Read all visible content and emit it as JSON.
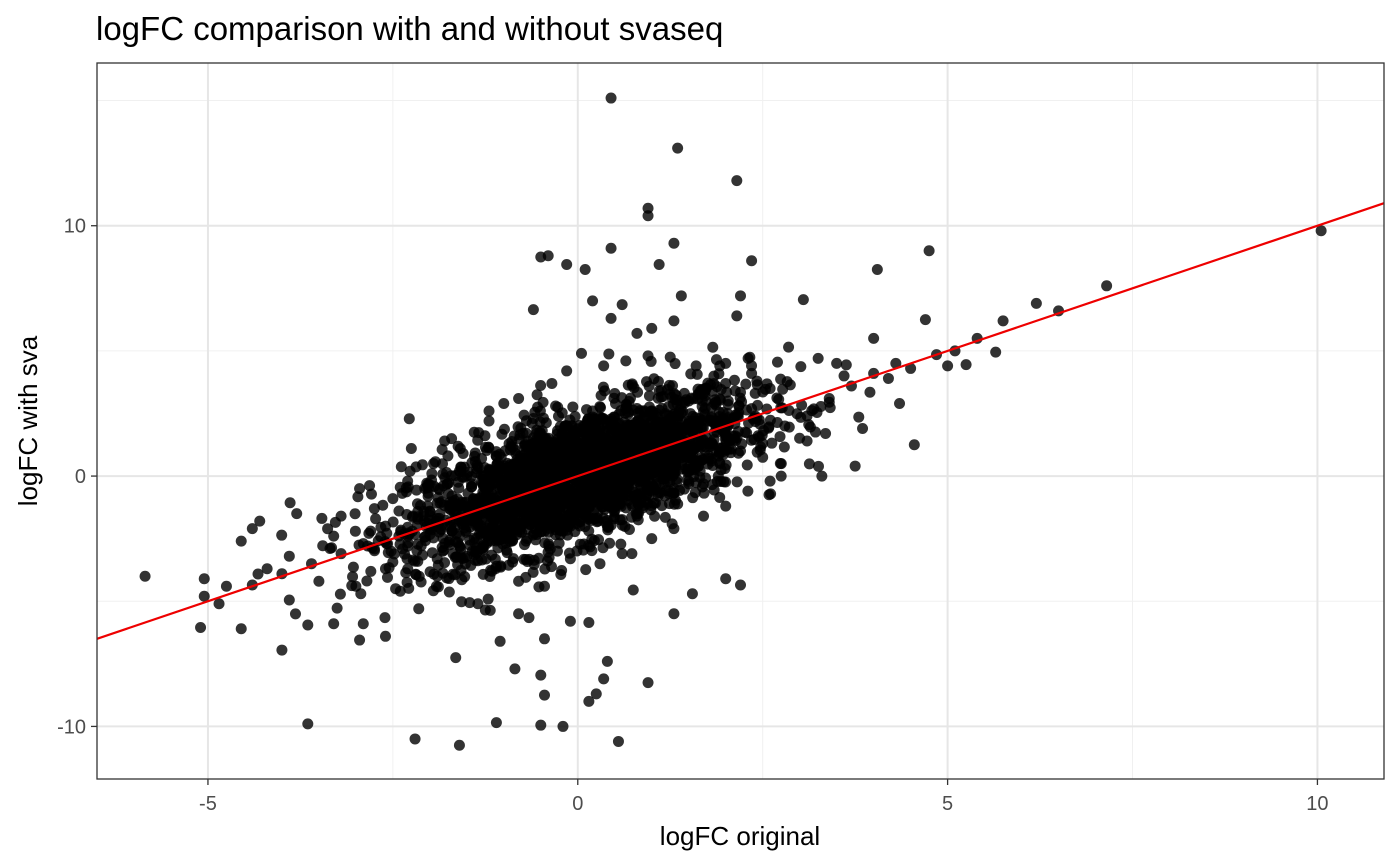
{
  "chart_data": {
    "type": "scatter",
    "title": "logFC comparison with and without svaseq",
    "xlabel": "logFC original",
    "ylabel": "logFC with sva",
    "xlim": [
      -6.5,
      10.9
    ],
    "ylim": [
      -12.1,
      16.5
    ],
    "x_ticks": [
      -5,
      0,
      5,
      10
    ],
    "y_ticks": [
      -10,
      0,
      10
    ],
    "x_tick_labels": [
      "-5",
      "0",
      "5",
      "10"
    ],
    "y_tick_labels": [
      "-10",
      "0",
      "10"
    ],
    "grid": true,
    "legend": "none",
    "point_color": "#000000",
    "point_opacity": 0.8,
    "line_color": "#ee0000",
    "fit_line": {
      "slope": 1.0,
      "intercept": 0.0
    },
    "points": [
      [
        0.45,
        15.1
      ],
      [
        1.35,
        13.1
      ],
      [
        2.15,
        11.8
      ],
      [
        0.95,
        10.7
      ],
      [
        0.95,
        10.4
      ],
      [
        10.05,
        9.8
      ],
      [
        1.3,
        9.3
      ],
      [
        0.45,
        9.1
      ],
      [
        4.75,
        9.0
      ],
      [
        -0.4,
        8.8
      ],
      [
        -0.5,
        8.75
      ],
      [
        -0.15,
        8.45
      ],
      [
        0.1,
        8.25
      ],
      [
        1.1,
        8.45
      ],
      [
        2.35,
        8.6
      ],
      [
        4.05,
        8.25
      ],
      [
        7.15,
        7.6
      ],
      [
        2.2,
        7.2
      ],
      [
        1.4,
        7.2
      ],
      [
        3.05,
        7.05
      ],
      [
        0.2,
        7.0
      ],
      [
        0.6,
        6.85
      ],
      [
        -0.6,
        6.65
      ],
      [
        6.2,
        6.9
      ],
      [
        6.5,
        6.6
      ],
      [
        5.75,
        6.2
      ],
      [
        0.45,
        6.3
      ],
      [
        1.3,
        6.2
      ],
      [
        4.7,
        6.25
      ],
      [
        2.15,
        6.4
      ],
      [
        1.0,
        5.9
      ],
      [
        0.8,
        5.7
      ],
      [
        4.0,
        5.5
      ],
      [
        5.4,
        5.5
      ],
      [
        5.1,
        5.0
      ],
      [
        4.85,
        4.85
      ],
      [
        5.0,
        4.4
      ],
      [
        5.25,
        4.45
      ],
      [
        5.65,
        4.95
      ],
      [
        4.5,
        4.3
      ],
      [
        3.6,
        4.0
      ],
      [
        4.2,
        3.9
      ],
      [
        3.95,
        3.35
      ],
      [
        4.35,
        2.9
      ],
      [
        3.4,
        2.95
      ],
      [
        3.85,
        1.9
      ],
      [
        3.1,
        1.4
      ],
      [
        2.75,
        0.0
      ],
      [
        3.3,
        0.0
      ],
      [
        3.75,
        0.4
      ],
      [
        3.35,
        1.7
      ],
      [
        4.55,
        1.25
      ],
      [
        2.5,
        0.75
      ],
      [
        1.9,
        0.8
      ],
      [
        -5.85,
        -4.0
      ],
      [
        -5.05,
        -4.8
      ],
      [
        -5.05,
        -4.1
      ],
      [
        -4.85,
        -5.1
      ],
      [
        -4.75,
        -4.4
      ],
      [
        -4.55,
        -2.6
      ],
      [
        -4.55,
        -6.1
      ],
      [
        -5.1,
        -6.05
      ],
      [
        -4.0,
        -6.95
      ],
      [
        -3.65,
        -5.95
      ],
      [
        -3.65,
        -9.9
      ],
      [
        -3.3,
        -5.9
      ],
      [
        -2.9,
        -5.9
      ],
      [
        -2.95,
        -6.55
      ],
      [
        -2.6,
        -6.4
      ],
      [
        -2.2,
        -10.5
      ],
      [
        -1.65,
        -7.25
      ],
      [
        -1.6,
        -10.75
      ],
      [
        -1.1,
        -9.85
      ],
      [
        -1.05,
        -6.6
      ],
      [
        -0.85,
        -7.7
      ],
      [
        -0.5,
        -7.95
      ],
      [
        -0.45,
        -8.75
      ],
      [
        -0.5,
        -9.95
      ],
      [
        -0.2,
        -10.0
      ],
      [
        0.15,
        -9.0
      ],
      [
        0.25,
        -8.7
      ],
      [
        0.35,
        -8.1
      ],
      [
        0.55,
        -10.6
      ],
      [
        0.4,
        -7.4
      ],
      [
        0.95,
        -8.25
      ],
      [
        1.3,
        -5.5
      ],
      [
        -0.8,
        -5.5
      ],
      [
        -1.35,
        -5.1
      ],
      [
        2.0,
        -4.1
      ],
      [
        2.2,
        -4.35
      ],
      [
        1.55,
        -4.7
      ],
      [
        0.75,
        -4.55
      ],
      [
        -2.4,
        -4.6
      ],
      [
        -3.9,
        -4.95
      ],
      [
        -2.15,
        -5.3
      ],
      [
        -1.25,
        -5.35
      ],
      [
        -0.1,
        -5.8
      ],
      [
        0.15,
        -5.85
      ],
      [
        -0.45,
        -6.5
      ],
      [
        -4.4,
        -4.35
      ],
      [
        -4.2,
        -3.7
      ],
      [
        -4.3,
        -1.8
      ],
      [
        -4.4,
        -2.1
      ],
      [
        -3.8,
        -1.5
      ],
      [
        -3.2,
        -1.6
      ],
      [
        -2.95,
        -0.5
      ],
      [
        -2.75,
        -1.3
      ],
      [
        -2.3,
        -0.2
      ],
      [
        -2.1,
        0.45
      ],
      [
        -2.25,
        1.1
      ],
      [
        -1.95,
        0.5
      ],
      [
        -1.75,
        -0.7
      ],
      [
        -1.55,
        0.9
      ],
      [
        -1.8,
        1.4
      ],
      [
        -1.4,
        1.75
      ],
      [
        -1.2,
        2.2
      ],
      [
        -1.0,
        2.9
      ],
      [
        -0.8,
        3.1
      ],
      [
        -0.55,
        3.25
      ],
      [
        -0.35,
        3.7
      ],
      [
        -0.15,
        4.2
      ],
      [
        0.05,
        4.9
      ],
      [
        0.35,
        4.4
      ],
      [
        0.65,
        4.6
      ],
      [
        0.95,
        4.8
      ],
      [
        1.25,
        4.75
      ],
      [
        1.6,
        4.4
      ],
      [
        2.0,
        4.5
      ],
      [
        2.35,
        4.1
      ],
      [
        2.7,
        4.55
      ],
      [
        2.85,
        5.15
      ],
      [
        3.25,
        4.7
      ],
      [
        3.5,
        4.5
      ],
      [
        2.6,
        3.5
      ],
      [
        2.2,
        3.35
      ],
      [
        1.85,
        2.9
      ],
      [
        1.5,
        3.0
      ],
      [
        -3.5,
        -4.2
      ],
      [
        -3.0,
        -4.4
      ],
      [
        -2.6,
        -3.7
      ],
      [
        -2.2,
        -3.4
      ],
      [
        -1.9,
        -4.0
      ],
      [
        -1.5,
        -3.2
      ],
      [
        -1.1,
        -3.6
      ],
      [
        -0.8,
        -4.2
      ],
      [
        -0.45,
        -4.4
      ],
      [
        -0.1,
        -3.3
      ],
      [
        0.3,
        -3.5
      ],
      [
        0.6,
        -3.1
      ],
      [
        1.0,
        -2.5
      ],
      [
        1.3,
        -2.1
      ],
      [
        1.7,
        -1.6
      ],
      [
        2.0,
        -1.2
      ],
      [
        2.3,
        -0.6
      ],
      [
        2.6,
        -0.2
      ],
      [
        -1.3,
        0.7
      ],
      [
        -0.9,
        1.2
      ],
      [
        -0.6,
        0.0
      ],
      [
        -0.3,
        -0.4
      ],
      [
        0.0,
        0.3
      ],
      [
        0.3,
        1.0
      ],
      [
        0.6,
        1.5
      ],
      [
        0.9,
        0.8
      ],
      [
        1.2,
        1.9
      ],
      [
        1.5,
        1.2
      ],
      [
        1.8,
        2.2
      ],
      [
        2.1,
        1.6
      ],
      [
        2.4,
        2.4
      ],
      [
        -2.6,
        -2.0
      ],
      [
        -2.3,
        -2.8
      ],
      [
        -2.0,
        -1.4
      ],
      [
        -1.7,
        -2.2
      ],
      [
        -1.4,
        -1.0
      ],
      [
        -1.1,
        -1.8
      ],
      [
        -0.8,
        -0.8
      ],
      [
        -0.5,
        -1.6
      ],
      [
        -0.2,
        -0.9
      ],
      [
        0.1,
        -1.5
      ],
      [
        0.4,
        -0.3
      ],
      [
        0.7,
        -0.8
      ],
      [
        1.0,
        0.1
      ],
      [
        1.3,
        -0.5
      ],
      [
        1.6,
        0.6
      ],
      [
        1.9,
        0.0
      ],
      [
        2.2,
        1.0
      ],
      [
        2.5,
        1.3
      ],
      [
        2.8,
        2.0
      ],
      [
        3.1,
        2.4
      ],
      [
        3.4,
        3.1
      ],
      [
        3.7,
        3.6
      ],
      [
        4.0,
        4.1
      ],
      [
        4.3,
        4.5
      ],
      [
        -3.2,
        -3.1
      ],
      [
        -2.9,
        -2.7
      ],
      [
        -3.6,
        -3.5
      ],
      [
        -4.0,
        -3.9
      ],
      [
        -3.9,
        -3.2
      ],
      [
        -3.3,
        -2.4
      ],
      [
        -0.6,
        2.3
      ],
      [
        -0.3,
        2.8
      ],
      [
        0.2,
        2.6
      ],
      [
        0.5,
        3.3
      ],
      [
        0.8,
        2.7
      ],
      [
        1.1,
        3.4
      ],
      [
        -1.6,
        0.2
      ],
      [
        -1.0,
        -0.2
      ],
      [
        -0.4,
        0.6
      ],
      [
        0.2,
        -0.7
      ],
      [
        0.8,
        -1.6
      ],
      [
        -0.7,
        -2.6
      ],
      [
        -0.2,
        -2.2
      ],
      [
        0.4,
        -2.0
      ],
      [
        -1.3,
        -2.9
      ],
      [
        -1.9,
        -3.3
      ],
      [
        0.1,
        1.8
      ],
      [
        -0.1,
        1.3
      ],
      [
        0.5,
        2.0
      ],
      [
        -0.5,
        1.7
      ],
      [
        -1.2,
        2.6
      ],
      [
        1.4,
        2.5
      ],
      [
        1.7,
        3.3
      ],
      [
        2.0,
        3.7
      ],
      [
        -2.5,
        -0.9
      ],
      [
        -2.8,
        -2.2
      ]
    ]
  }
}
